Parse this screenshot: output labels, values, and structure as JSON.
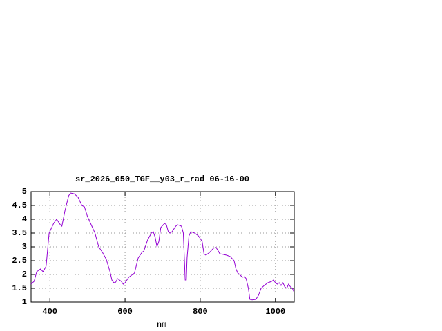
{
  "chart_data": {
    "type": "line",
    "title": "sr_2026_050_TGF__y03_r_rad 06-16-00",
    "x_label": "nm",
    "color": "#9400d3",
    "grid": true,
    "xlim": [
      350,
      1050
    ],
    "ylim": [
      1,
      5
    ],
    "xticks": [
      400,
      600,
      800,
      1000
    ],
    "yticks": [
      1,
      1.5,
      2,
      2.5,
      3,
      3.5,
      4,
      4.5,
      5
    ],
    "x": [
      350,
      358,
      365,
      375,
      382,
      390,
      398,
      410,
      418,
      428,
      432,
      440,
      450,
      455,
      465,
      475,
      485,
      492,
      500,
      510,
      520,
      530,
      540,
      550,
      560,
      565,
      570,
      575,
      580,
      590,
      595,
      600,
      610,
      620,
      625,
      635,
      645,
      650,
      660,
      670,
      675,
      680,
      685,
      690,
      695,
      705,
      710,
      715,
      720,
      725,
      735,
      740,
      750,
      755,
      758,
      760,
      763,
      765,
      770,
      775,
      785,
      795,
      805,
      810,
      815,
      825,
      835,
      842,
      848,
      852,
      860,
      870,
      880,
      890,
      895,
      900,
      905,
      912,
      918,
      922,
      928,
      932,
      938,
      948,
      955,
      962,
      970,
      980,
      990,
      995,
      1000,
      1005,
      1010,
      1015,
      1020,
      1025,
      1030,
      1035,
      1040,
      1045,
      1050
    ],
    "values": [
      1.65,
      1.75,
      2.1,
      2.2,
      2.1,
      2.3,
      3.5,
      3.85,
      4.0,
      3.8,
      3.75,
      4.3,
      4.85,
      4.95,
      4.92,
      4.8,
      4.5,
      4.45,
      4.1,
      3.8,
      3.5,
      3.0,
      2.8,
      2.55,
      2.1,
      1.8,
      1.7,
      1.72,
      1.85,
      1.75,
      1.65,
      1.7,
      1.9,
      2.0,
      2.05,
      2.6,
      2.8,
      2.85,
      3.25,
      3.5,
      3.55,
      3.35,
      3.0,
      3.2,
      3.7,
      3.85,
      3.8,
      3.55,
      3.5,
      3.55,
      3.75,
      3.8,
      3.75,
      3.5,
      2.5,
      1.8,
      1.8,
      2.6,
      3.4,
      3.55,
      3.5,
      3.4,
      3.2,
      2.75,
      2.7,
      2.8,
      2.95,
      2.98,
      2.85,
      2.75,
      2.73,
      2.7,
      2.65,
      2.5,
      2.2,
      2.05,
      2.0,
      1.9,
      1.92,
      1.85,
      1.5,
      1.1,
      1.08,
      1.1,
      1.25,
      1.5,
      1.6,
      1.7,
      1.75,
      1.8,
      1.7,
      1.65,
      1.7,
      1.6,
      1.7,
      1.55,
      1.5,
      1.65,
      1.55,
      1.5,
      1.35
    ]
  }
}
